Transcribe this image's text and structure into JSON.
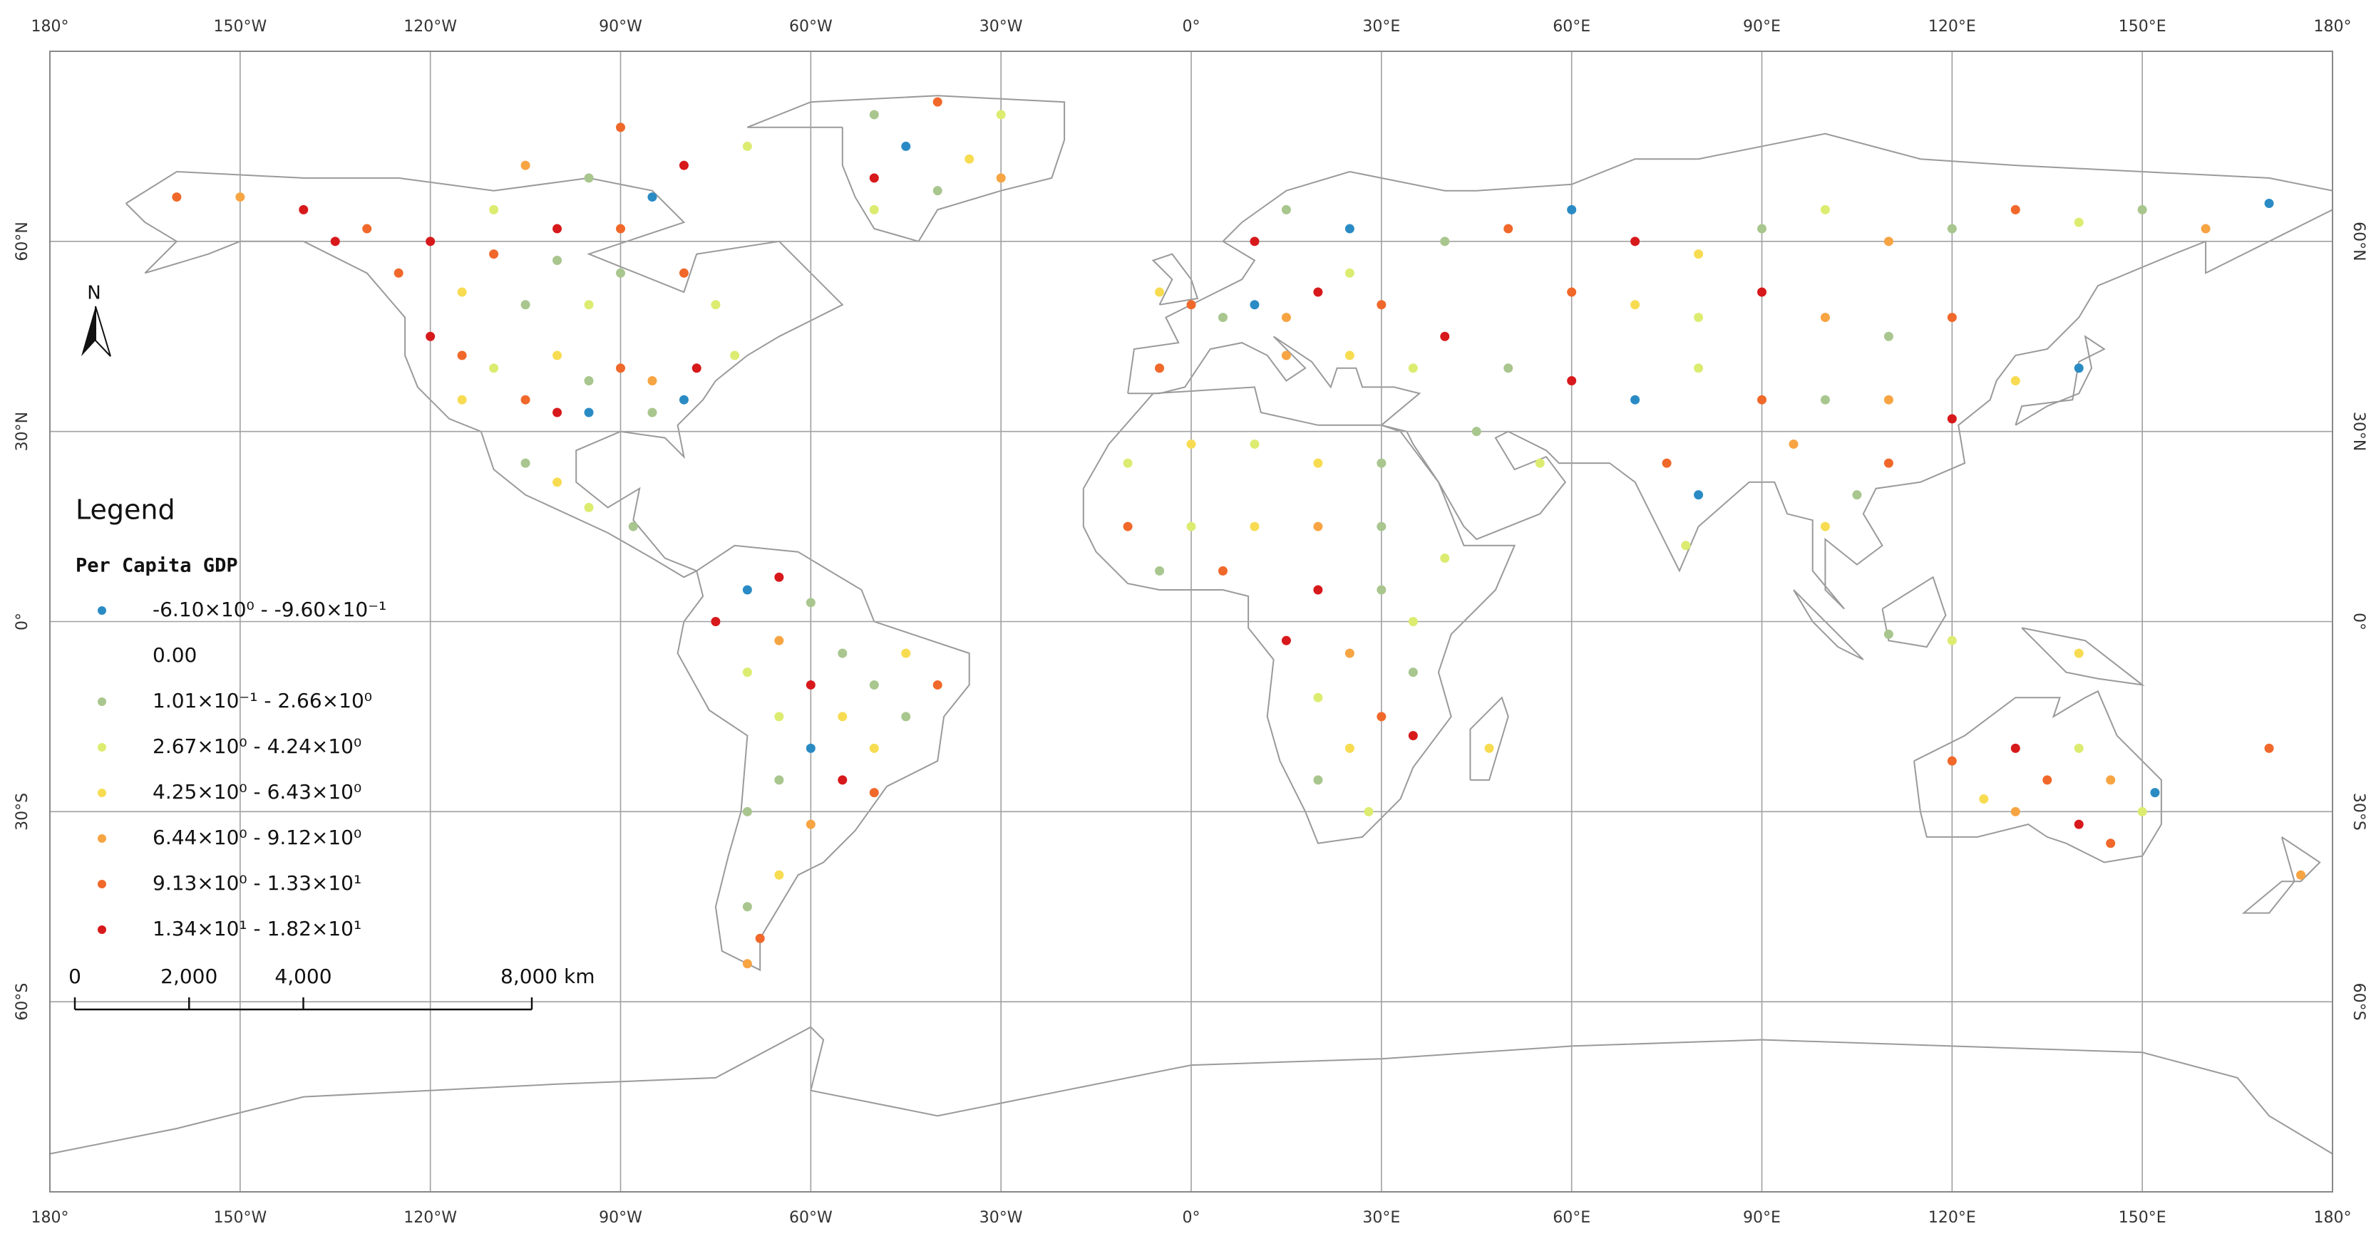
{
  "map": {
    "graticule": {
      "lon_ticks": [
        {
          "value": -180,
          "label": "180°"
        },
        {
          "value": -150,
          "label": "150°W"
        },
        {
          "value": -120,
          "label": "120°W"
        },
        {
          "value": -90,
          "label": "90°W"
        },
        {
          "value": -60,
          "label": "60°W"
        },
        {
          "value": -30,
          "label": "30°W"
        },
        {
          "value": 0,
          "label": "0°"
        },
        {
          "value": 30,
          "label": "30°E"
        },
        {
          "value": 60,
          "label": "60°E"
        },
        {
          "value": 90,
          "label": "90°E"
        },
        {
          "value": 120,
          "label": "120°E"
        },
        {
          "value": 150,
          "label": "150°E"
        },
        {
          "value": 180,
          "label": "180°"
        }
      ],
      "lat_ticks": [
        {
          "value": 60,
          "label": "60°N"
        },
        {
          "value": 30,
          "label": "30°N"
        },
        {
          "value": 0,
          "label": "0°"
        },
        {
          "value": -30,
          "label": "30°S"
        },
        {
          "value": -60,
          "label": "60°S"
        }
      ]
    },
    "north": "N",
    "legend": {
      "title": "Legend",
      "subtitle": "Per Capita GDP",
      "classes": [
        {
          "label": "-6.10×10⁰ - -9.60×10⁻¹",
          "color": "#2a8bc4"
        },
        {
          "label": "0.00",
          "color": "#ffffff"
        },
        {
          "label": "1.01×10⁻¹ - 2.66×10⁰",
          "color": "#a8c68e"
        },
        {
          "label": "2.67×10⁰ - 4.24×10⁰",
          "color": "#dcec70"
        },
        {
          "label": "4.25×10⁰ - 6.43×10⁰",
          "color": "#f7dc52"
        },
        {
          "label": "6.44×10⁰ - 9.12×10⁰",
          "color": "#f7a443"
        },
        {
          "label": "9.13×10⁰ - 1.33×10¹",
          "color": "#f0682a"
        },
        {
          "label": "1.34×10¹ - 1.82×10¹",
          "color": "#d7191c"
        }
      ]
    },
    "scale_bar": {
      "ticks": [
        {
          "value": 0,
          "label": "0"
        },
        {
          "value": 2000,
          "label": "2,000"
        },
        {
          "value": 4000,
          "label": "4,000"
        },
        {
          "value": 8000,
          "label": "8,000 km"
        }
      ]
    },
    "points": [
      [
        -160,
        67,
        6
      ],
      [
        -150,
        67,
        5
      ],
      [
        -140,
        65,
        7
      ],
      [
        -130,
        62,
        6
      ],
      [
        -120,
        60,
        7
      ],
      [
        -110,
        58,
        6
      ],
      [
        -100,
        57,
        2
      ],
      [
        -90,
        55,
        2
      ],
      [
        -80,
        55,
        6
      ],
      [
        -75,
        50,
        3
      ],
      [
        -115,
        52,
        4
      ],
      [
        -105,
        50,
        2
      ],
      [
        -95,
        50,
        3
      ],
      [
        -125,
        55,
        6
      ],
      [
        -135,
        60,
        7
      ],
      [
        -100,
        62,
        7
      ],
      [
        -90,
        62,
        6
      ],
      [
        -110,
        65,
        3
      ],
      [
        -85,
        67,
        0
      ],
      [
        -95,
        70,
        2
      ],
      [
        -105,
        72,
        5
      ],
      [
        -80,
        72,
        7
      ],
      [
        -70,
        75,
        3
      ],
      [
        -90,
        78,
        6
      ],
      [
        -120,
        45,
        7
      ],
      [
        -115,
        42,
        6
      ],
      [
        -110,
        40,
        3
      ],
      [
        -100,
        42,
        4
      ],
      [
        -95,
        38,
        2
      ],
      [
        -90,
        40,
        6
      ],
      [
        -85,
        38,
        5
      ],
      [
        -80,
        35,
        0
      ],
      [
        -105,
        35,
        6
      ],
      [
        -115,
        35,
        4
      ],
      [
        -95,
        33,
        0
      ],
      [
        -100,
        33,
        7
      ],
      [
        -85,
        33,
        2
      ],
      [
        -78,
        40,
        7
      ],
      [
        -72,
        42,
        3
      ],
      [
        -105,
        25,
        2
      ],
      [
        -100,
        22,
        4
      ],
      [
        -95,
        18,
        3
      ],
      [
        -88,
        15,
        2
      ],
      [
        -70,
        5,
        0
      ],
      [
        -65,
        7,
        7
      ],
      [
        -60,
        3,
        2
      ],
      [
        -75,
        0,
        7
      ],
      [
        -65,
        -3,
        5
      ],
      [
        -55,
        -5,
        2
      ],
      [
        -45,
        -5,
        4
      ],
      [
        -70,
        -8,
        3
      ],
      [
        -60,
        -10,
        7
      ],
      [
        -50,
        -10,
        2
      ],
      [
        -40,
        -10,
        6
      ],
      [
        -65,
        -15,
        3
      ],
      [
        -55,
        -15,
        4
      ],
      [
        -45,
        -15,
        2
      ],
      [
        -60,
        -20,
        0
      ],
      [
        -50,
        -20,
        4
      ],
      [
        -65,
        -25,
        2
      ],
      [
        -55,
        -25,
        7
      ],
      [
        -50,
        -27,
        6
      ],
      [
        -70,
        -30,
        2
      ],
      [
        -60,
        -32,
        5
      ],
      [
        -65,
        -40,
        4
      ],
      [
        -70,
        -45,
        2
      ],
      [
        -68,
        -50,
        6
      ],
      [
        -70,
        -54,
        5
      ],
      [
        -50,
        80,
        2
      ],
      [
        -40,
        82,
        6
      ],
      [
        -30,
        80,
        3
      ],
      [
        -45,
        75,
        0
      ],
      [
        -35,
        73,
        4
      ],
      [
        -50,
        70,
        7
      ],
      [
        -40,
        68,
        2
      ],
      [
        -30,
        70,
        5
      ],
      [
        -50,
        65,
        3
      ],
      [
        -5,
        52,
        4
      ],
      [
        0,
        50,
        6
      ],
      [
        5,
        48,
        2
      ],
      [
        10,
        50,
        0
      ],
      [
        15,
        48,
        5
      ],
      [
        20,
        52,
        7
      ],
      [
        25,
        55,
        3
      ],
      [
        30,
        50,
        6
      ],
      [
        10,
        60,
        7
      ],
      [
        15,
        65,
        2
      ],
      [
        25,
        62,
        0
      ],
      [
        -5,
        40,
        6
      ],
      [
        15,
        42,
        5
      ],
      [
        25,
        42,
        4
      ],
      [
        35,
        40,
        3
      ],
      [
        40,
        45,
        7
      ],
      [
        40,
        60,
        2
      ],
      [
        50,
        62,
        6
      ],
      [
        60,
        65,
        0
      ],
      [
        70,
        60,
        7
      ],
      [
        80,
        58,
        4
      ],
      [
        90,
        62,
        2
      ],
      [
        100,
        65,
        3
      ],
      [
        110,
        60,
        5
      ],
      [
        120,
        62,
        2
      ],
      [
        130,
        65,
        6
      ],
      [
        140,
        63,
        3
      ],
      [
        150,
        65,
        2
      ],
      [
        160,
        62,
        5
      ],
      [
        170,
        66,
        0
      ],
      [
        60,
        52,
        6
      ],
      [
        70,
        50,
        4
      ],
      [
        80,
        48,
        3
      ],
      [
        90,
        52,
        7
      ],
      [
        100,
        48,
        5
      ],
      [
        110,
        45,
        2
      ],
      [
        120,
        48,
        6
      ],
      [
        50,
        40,
        2
      ],
      [
        60,
        38,
        7
      ],
      [
        70,
        35,
        0
      ],
      [
        80,
        40,
        3
      ],
      [
        90,
        35,
        6
      ],
      [
        100,
        35,
        2
      ],
      [
        110,
        35,
        5
      ],
      [
        120,
        32,
        7
      ],
      [
        130,
        38,
        4
      ],
      [
        140,
        40,
        0
      ],
      [
        45,
        30,
        2
      ],
      [
        55,
        25,
        3
      ],
      [
        75,
        25,
        6
      ],
      [
        80,
        20,
        0
      ],
      [
        78,
        12,
        3
      ],
      [
        100,
        15,
        4
      ],
      [
        105,
        20,
        2
      ],
      [
        110,
        25,
        6
      ],
      [
        95,
        28,
        5
      ],
      [
        -10,
        25,
        3
      ],
      [
        0,
        28,
        4
      ],
      [
        10,
        28,
        3
      ],
      [
        20,
        25,
        4
      ],
      [
        30,
        25,
        2
      ],
      [
        -10,
        15,
        6
      ],
      [
        0,
        15,
        3
      ],
      [
        10,
        15,
        4
      ],
      [
        20,
        15,
        5
      ],
      [
        30,
        15,
        2
      ],
      [
        40,
        10,
        3
      ],
      [
        -5,
        8,
        2
      ],
      [
        5,
        8,
        6
      ],
      [
        20,
        5,
        7
      ],
      [
        30,
        5,
        2
      ],
      [
        35,
        0,
        3
      ],
      [
        15,
        -3,
        7
      ],
      [
        25,
        -5,
        5
      ],
      [
        35,
        -8,
        2
      ],
      [
        20,
        -12,
        3
      ],
      [
        30,
        -15,
        6
      ],
      [
        25,
        -20,
        4
      ],
      [
        35,
        -18,
        7
      ],
      [
        20,
        -25,
        2
      ],
      [
        28,
        -30,
        3
      ],
      [
        47,
        -20,
        4
      ],
      [
        120,
        -22,
        6
      ],
      [
        130,
        -20,
        7
      ],
      [
        140,
        -20,
        3
      ],
      [
        145,
        -25,
        5
      ],
      [
        135,
        -25,
        6
      ],
      [
        125,
        -28,
        4
      ],
      [
        150,
        -30,
        3
      ],
      [
        140,
        -32,
        7
      ],
      [
        145,
        -35,
        6
      ],
      [
        130,
        -30,
        5
      ],
      [
        152,
        -27,
        0
      ],
      [
        175,
        -40,
        5
      ],
      [
        170,
        -20,
        6
      ],
      [
        110,
        -2,
        2
      ],
      [
        120,
        -3,
        3
      ],
      [
        140,
        -5,
        4
      ]
    ]
  }
}
